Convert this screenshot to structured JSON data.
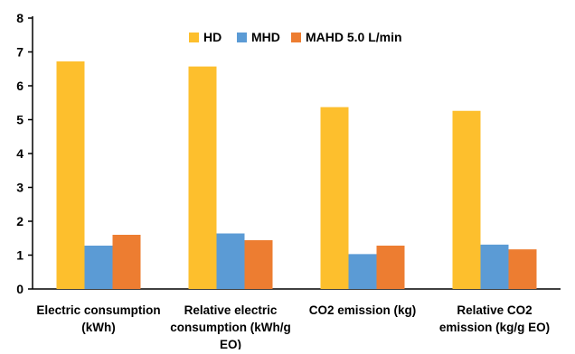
{
  "chart_data": {
    "type": "bar",
    "categories": [
      [
        "Electric consumption",
        "(kWh)"
      ],
      [
        "Relative electric",
        "consumption (kWh/g",
        "EO)"
      ],
      [
        "CO2 emission (kg)"
      ],
      [
        "Relative CO2",
        "emission (kg/g EO)"
      ]
    ],
    "series": [
      {
        "name": "HD",
        "color": "#FDBF2D",
        "values": [
          6.72,
          6.57,
          5.37,
          5.26
        ]
      },
      {
        "name": "MHD",
        "color": "#5B9BD5",
        "values": [
          1.28,
          1.64,
          1.03,
          1.31
        ]
      },
      {
        "name": "MAHD 5.0 L/min",
        "color": "#ED7D31",
        "values": [
          1.6,
          1.44,
          1.28,
          1.17
        ]
      }
    ],
    "ylim": [
      0,
      8
    ],
    "yticks": [
      0,
      1,
      2,
      3,
      4,
      5,
      6,
      7,
      8
    ],
    "title": "",
    "xlabel": "",
    "ylabel": "",
    "grid": false,
    "legend_position": "top-center"
  }
}
